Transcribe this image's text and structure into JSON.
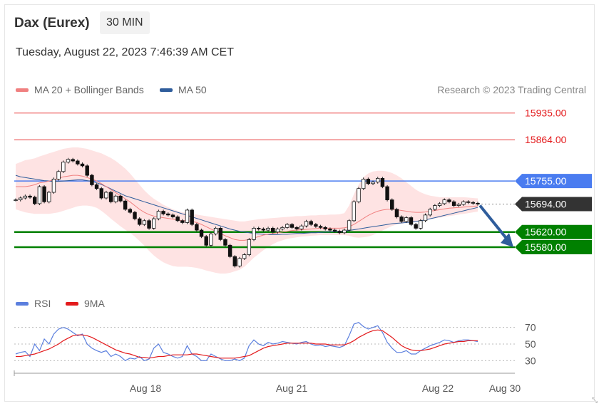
{
  "header": {
    "title": "Dax (Eurex)",
    "timeframe": "30 MIN",
    "timestamp": "Tuesday, August 22, 2023 7:46:39 AM CET"
  },
  "legend": {
    "ma20": "MA 20 + Bollinger Bands",
    "ma50": "MA 50",
    "ma20_color": "#f08080",
    "ma50_color": "#2f5d9c",
    "credit": "Research © 2023 Trading Central"
  },
  "rsi_legend": {
    "rsi": "RSI",
    "nine_ma": "9MA",
    "rsi_color": "#5b7fde",
    "nine_ma_color": "#e31a1c"
  },
  "chart_data": [
    {
      "type": "candlestick",
      "ylim": [
        15480,
        15970
      ],
      "x_ticks": [
        "Aug 18",
        "Aug 21",
        "Aug 22",
        "Aug 30"
      ],
      "levels": [
        {
          "value": 15935.0,
          "label": "15935.00",
          "kind": "resistance",
          "color": "#f08080",
          "text_color": "#e31a1c"
        },
        {
          "value": 15864.0,
          "label": "15864.00",
          "kind": "resistance",
          "color": "#f08080",
          "text_color": "#e31a1c"
        },
        {
          "value": 15755.0,
          "label": "15755.00",
          "kind": "pivot",
          "color": "#4a7cf0",
          "text_color": "#ffffff"
        },
        {
          "value": 15694.0,
          "label": "15694.00",
          "kind": "last",
          "color": "#333333",
          "text_color": "#ffffff"
        },
        {
          "value": 15620.0,
          "label": "15620.00",
          "kind": "support",
          "color": "#008000",
          "text_color": "#ffffff"
        },
        {
          "value": 15580.0,
          "label": "15580.00",
          "kind": "support",
          "color": "#008000",
          "text_color": "#ffffff"
        }
      ],
      "close": [
        15705,
        15710,
        15715,
        15712,
        15695,
        15740,
        15700,
        15725,
        15760,
        15780,
        15805,
        15812,
        15808,
        15800,
        15795,
        15770,
        15745,
        15735,
        15710,
        15725,
        15700,
        15715,
        15702,
        15680,
        15672,
        15655,
        15640,
        15650,
        15630,
        15655,
        15675,
        15668,
        15665,
        15660,
        15650,
        15645,
        15678,
        15640,
        15625,
        15608,
        15585,
        15615,
        15630,
        15600,
        15585,
        15555,
        15530,
        15550,
        15560,
        15600,
        15630,
        15628,
        15625,
        15630,
        15620,
        15628,
        15632,
        15640,
        15632,
        15628,
        15636,
        15648,
        15640,
        15635,
        15632,
        15628,
        15625,
        15622,
        15618,
        15625,
        15650,
        15700,
        15735,
        15760,
        15748,
        15752,
        15762,
        15740,
        15705,
        15680,
        15660,
        15648,
        15658,
        15640,
        15630,
        15650,
        15665,
        15680,
        15690,
        15695,
        15705,
        15700,
        15690,
        15693,
        15700,
        15698,
        15696,
        15694
      ],
      "ma20": [
        15740,
        15740,
        15740,
        15742,
        15745,
        15750,
        15752,
        15755,
        15758,
        15762,
        15766,
        15768,
        15770,
        15770,
        15768,
        15764,
        15760,
        15755,
        15748,
        15740,
        15732,
        15724,
        15716,
        15708,
        15700,
        15690,
        15680,
        15672,
        15666,
        15662,
        15660,
        15658,
        15656,
        15654,
        15652,
        15650,
        15650,
        15648,
        15645,
        15640,
        15634,
        15628,
        15622,
        15616,
        15610,
        15605,
        15600,
        15598,
        15598,
        15600,
        15604,
        15608,
        15612,
        15614,
        15616,
        15618,
        15620,
        15622,
        15624,
        15625,
        15626,
        15627,
        15628,
        15629,
        15630,
        15630,
        15630,
        15630,
        15630,
        15631,
        15634,
        15640,
        15648,
        15656,
        15664,
        15670,
        15675,
        15678,
        15680,
        15680,
        15679,
        15677,
        15675,
        15673,
        15672,
        15672,
        15673,
        15675,
        15677,
        15679,
        15681,
        15683,
        15684,
        15685,
        15686,
        15687,
        15688,
        15689
      ],
      "bb_upper": [
        15800,
        15805,
        15810,
        15812,
        15815,
        15820,
        15824,
        15828,
        15832,
        15836,
        15840,
        15842,
        15844,
        15844,
        15842,
        15840,
        15836,
        15832,
        15828,
        15822,
        15816,
        15808,
        15798,
        15788,
        15775,
        15760,
        15745,
        15730,
        15718,
        15708,
        15700,
        15692,
        15686,
        15680,
        15676,
        15672,
        15670,
        15668,
        15666,
        15664,
        15662,
        15660,
        15658,
        15656,
        15654,
        15652,
        15650,
        15648,
        15648,
        15650,
        15652,
        15654,
        15655,
        15656,
        15657,
        15658,
        15659,
        15660,
        15661,
        15662,
        15662,
        15663,
        15664,
        15664,
        15665,
        15665,
        15666,
        15666,
        15667,
        15670,
        15690,
        15720,
        15745,
        15765,
        15775,
        15780,
        15782,
        15782,
        15780,
        15776,
        15770,
        15762,
        15752,
        15742,
        15732,
        15725,
        15720,
        15716,
        15714,
        15712,
        15712,
        15712,
        15712,
        15712,
        15712,
        15711,
        15710,
        15709
      ],
      "bb_lower": [
        15680,
        15676,
        15672,
        15670,
        15668,
        15668,
        15668,
        15668,
        15670,
        15672,
        15676,
        15680,
        15684,
        15688,
        15690,
        15690,
        15688,
        15684,
        15676,
        15666,
        15655,
        15645,
        15635,
        15626,
        15618,
        15608,
        15596,
        15584,
        15570,
        15558,
        15548,
        15540,
        15534,
        15530,
        15528,
        15528,
        15528,
        15527,
        15525,
        15522,
        15518,
        15515,
        15512,
        15510,
        15510,
        15512,
        15516,
        15520,
        15528,
        15540,
        15552,
        15562,
        15572,
        15580,
        15588,
        15594,
        15598,
        15602,
        15604,
        15606,
        15608,
        15609,
        15610,
        15611,
        15612,
        15612,
        15612,
        15612,
        15612,
        15612,
        15610,
        15606,
        15605,
        15606,
        15608,
        15612,
        15618,
        15624,
        15630,
        15636,
        15640,
        15642,
        15644,
        15646,
        15648,
        15650,
        15652,
        15654,
        15656,
        15658,
        15660,
        15662,
        15664,
        15666,
        15668,
        15670,
        15672,
        15674
      ],
      "ma50": [
        15770,
        15766,
        15764,
        15762,
        15760,
        15758,
        15756,
        15755,
        15754,
        15754,
        15755,
        15756,
        15757,
        15758,
        15758,
        15756,
        15754,
        15750,
        15746,
        15740,
        15734,
        15728,
        15722,
        15716,
        15712,
        15708,
        15704,
        15700,
        15696,
        15692,
        15688,
        15684,
        15680,
        15676,
        15672,
        15668,
        15664,
        15660,
        15656,
        15652,
        15648,
        15644,
        15640,
        15636,
        15632,
        15628,
        15625,
        15622,
        15620,
        15618,
        15616,
        15615,
        15614,
        15613,
        15613,
        15613,
        15614,
        15614,
        15615,
        15616,
        15616,
        15617,
        15618,
        15618,
        15619,
        15620,
        15620,
        15621,
        15622,
        15622,
        15624,
        15626,
        15628,
        15630,
        15632,
        15634,
        15636,
        15638,
        15640,
        15642,
        15643,
        15644,
        15645,
        15646,
        15648,
        15650,
        15652,
        15655,
        15658,
        15661,
        15664,
        15667,
        15670,
        15673,
        15676,
        15679,
        15682,
        15685
      ]
    },
    {
      "type": "line",
      "ylim": [
        20,
        80
      ],
      "y_ticks": [
        70,
        50,
        30
      ],
      "series": [
        {
          "name": "RSI",
          "values": [
            38,
            40,
            41,
            35,
            50,
            42,
            56,
            50,
            62,
            68,
            70,
            68,
            64,
            60,
            62,
            50,
            45,
            42,
            40,
            42,
            35,
            38,
            35,
            30,
            33,
            32,
            35,
            30,
            32,
            45,
            50,
            40,
            38,
            35,
            33,
            35,
            48,
            38,
            35,
            30,
            30,
            38,
            35,
            32,
            30,
            30,
            32,
            30,
            33,
            48,
            55,
            50,
            48,
            52,
            50,
            51,
            53,
            52,
            51,
            50,
            52,
            53,
            50,
            48,
            49,
            47,
            48,
            47,
            46,
            48,
            60,
            74,
            76,
            71,
            68,
            70,
            72,
            64,
            52,
            45,
            40,
            40,
            42,
            38,
            38,
            42,
            45,
            48,
            50,
            52,
            55,
            54,
            52,
            54,
            55,
            55,
            54,
            53
          ]
        },
        {
          "name": "9MA",
          "values": [
            35,
            35,
            36,
            37,
            38,
            40,
            42,
            44,
            47,
            50,
            54,
            57,
            60,
            61,
            61,
            60,
            58,
            55,
            52,
            49,
            46,
            43,
            41,
            39,
            38,
            36,
            34,
            34,
            33,
            34,
            35,
            35,
            36,
            37,
            37,
            37,
            37,
            38,
            38,
            37,
            36,
            35,
            34,
            33,
            33,
            33,
            33,
            34,
            35,
            36,
            39,
            42,
            45,
            47,
            48,
            49,
            50,
            51,
            51,
            51,
            51,
            51,
            51,
            50,
            50,
            50,
            49,
            49,
            49,
            49,
            51,
            54,
            58,
            61,
            64,
            66,
            67,
            66,
            62,
            58,
            53,
            48,
            45,
            43,
            42,
            42,
            43,
            44,
            46,
            48,
            50,
            51,
            52,
            53,
            53,
            54,
            54,
            54
          ]
        }
      ],
      "ref_lines": [
        70,
        50,
        30
      ]
    }
  ]
}
